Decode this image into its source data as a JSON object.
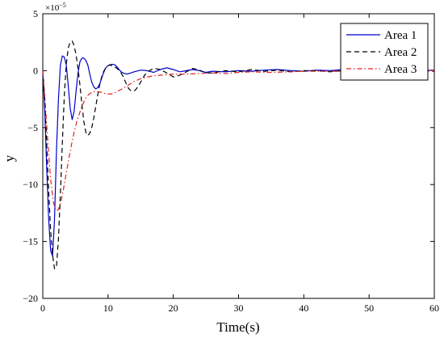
{
  "chart_data": {
    "type": "line",
    "xlabel": "Time(s)",
    "ylabel": "y",
    "y_exponent_label": "×10",
    "y_exponent_power": "−5",
    "xlim": [
      0,
      60
    ],
    "ylim": [
      -20,
      5
    ],
    "y_scale_factor": "1e-5",
    "xticks": [
      "0",
      "10",
      "20",
      "30",
      "40",
      "50",
      "60"
    ],
    "yticks": [
      "5",
      "0",
      "-5",
      "-10",
      "-15",
      "-20"
    ],
    "grid": false,
    "legend_position": "top-right",
    "series": [
      {
        "name": "Area 1",
        "color": "#0000cc",
        "dash": "solid",
        "x": [
          0,
          0.3,
          0.6,
          0.9,
          1.2,
          1.5,
          1.8,
          2.1,
          2.4,
          2.7,
          3.0,
          3.3,
          3.6,
          3.9,
          4.2,
          4.5,
          4.8,
          5.1,
          5.4,
          5.7,
          6.0,
          6.3,
          6.6,
          6.9,
          7.2,
          7.5,
          7.8,
          8.1,
          8.4,
          8.7,
          9.0,
          9.3,
          9.6,
          9.9,
          10.2,
          10.5,
          10.8,
          11.1,
          11.4,
          11.7,
          12.0,
          12.3,
          12.6,
          12.9,
          13.2,
          13.5,
          14,
          15,
          16,
          17,
          18,
          19,
          20,
          21,
          22,
          23,
          24,
          25,
          26,
          28,
          30,
          32,
          34,
          36,
          38,
          40,
          42,
          44,
          46,
          48,
          50,
          52,
          54,
          56,
          58,
          60
        ],
        "values": [
          0,
          -3.5,
          -8.5,
          -13,
          -15.8,
          -16.3,
          -13,
          -7,
          -2.5,
          0.5,
          1.3,
          1.2,
          0.5,
          -1.3,
          -3.3,
          -4.3,
          -3.6,
          -1.8,
          -0.2,
          0.8,
          1.1,
          1.1,
          0.9,
          0.5,
          -0.3,
          -1.0,
          -1.4,
          -1.6,
          -1.5,
          -1.2,
          -0.7,
          -0.2,
          0.2,
          0.4,
          0.5,
          0.55,
          0.55,
          0.5,
          0.3,
          0.1,
          -0.1,
          -0.2,
          -0.25,
          -0.3,
          -0.25,
          -0.2,
          -0.1,
          0.05,
          0.0,
          -0.15,
          0.1,
          0.25,
          0.1,
          -0.1,
          0.0,
          0.1,
          0.0,
          -0.15,
          -0.05,
          -0.1,
          0.0,
          -0.05,
          0.05,
          0.1,
          0.0,
          -0.05,
          0.05,
          0.0,
          0.1,
          0.05,
          0.0,
          0.05,
          -0.05,
          0.05,
          0.0,
          0.05
        ]
      },
      {
        "name": "Area 2",
        "color": "#000000",
        "dash": "dashed",
        "x": [
          0,
          0.3,
          0.6,
          0.9,
          1.2,
          1.5,
          1.8,
          2.1,
          2.4,
          2.7,
          3.0,
          3.3,
          3.6,
          3.9,
          4.2,
          4.5,
          4.8,
          5.1,
          5.4,
          5.7,
          6.0,
          6.3,
          6.6,
          6.9,
          7.2,
          7.5,
          7.8,
          8.1,
          8.4,
          8.7,
          9.0,
          9.3,
          9.6,
          9.9,
          10.2,
          10.5,
          10.8,
          11.1,
          11.4,
          11.7,
          12.0,
          12.3,
          12.6,
          12.9,
          13.2,
          13.5,
          13.8,
          14.1,
          14.4,
          14.7,
          15.0,
          15.3,
          15.6,
          16,
          17,
          18,
          19,
          20,
          21,
          22,
          23,
          24,
          25,
          26,
          28,
          30,
          32,
          34,
          36,
          38,
          40,
          42,
          44,
          46,
          48,
          50,
          52,
          54,
          56,
          58,
          60
        ],
        "values": [
          0,
          -2.5,
          -6.5,
          -10.5,
          -14.0,
          -16.2,
          -17.4,
          -17.2,
          -14.8,
          -10.8,
          -6.3,
          -2.2,
          0.6,
          2.0,
          2.5,
          2.6,
          2.2,
          1.4,
          0.2,
          -1.3,
          -3.0,
          -4.5,
          -5.4,
          -5.7,
          -5.5,
          -5.0,
          -4.2,
          -3.2,
          -2.2,
          -1.3,
          -0.6,
          -0.1,
          0.2,
          0.4,
          0.5,
          0.45,
          0.4,
          0.3,
          0.2,
          0.0,
          -0.2,
          -0.5,
          -0.9,
          -1.3,
          -1.6,
          -1.75,
          -1.8,
          -1.75,
          -1.55,
          -1.3,
          -1.0,
          -0.7,
          -0.4,
          -0.1,
          0.2,
          0.1,
          -0.2,
          -0.55,
          -0.4,
          -0.1,
          0.2,
          0.05,
          -0.2,
          -0.2,
          0.0,
          -0.1,
          0.1,
          -0.05,
          0.05,
          -0.1,
          0.0,
          0.0,
          -0.1,
          0.0,
          -0.05,
          0.0,
          -0.1,
          0.0,
          -0.05,
          0.0,
          -0.05
        ]
      },
      {
        "name": "Area 3",
        "color": "#e02020",
        "dash": "dashdot",
        "x": [
          0,
          0.4,
          0.8,
          1.2,
          1.6,
          2.0,
          2.4,
          2.8,
          3.2,
          3.6,
          4.0,
          4.4,
          4.8,
          5.2,
          5.6,
          6.0,
          6.5,
          7.0,
          7.5,
          8.0,
          8.5,
          9.0,
          9.5,
          10,
          10.5,
          11,
          12,
          13,
          14,
          15,
          16,
          17,
          18,
          19,
          20,
          22,
          24,
          26,
          28,
          30,
          32,
          35,
          38,
          40,
          45,
          50,
          55,
          60
        ],
        "values": [
          0,
          -3.0,
          -6.5,
          -9.5,
          -11.5,
          -12.3,
          -12.2,
          -11.5,
          -10.3,
          -9.0,
          -7.7,
          -6.5,
          -5.4,
          -4.5,
          -3.8,
          -3.1,
          -2.5,
          -2.1,
          -1.9,
          -1.8,
          -1.85,
          -1.9,
          -2.0,
          -2.05,
          -2.05,
          -1.95,
          -1.65,
          -1.3,
          -0.95,
          -0.7,
          -0.55,
          -0.45,
          -0.4,
          -0.35,
          -0.3,
          -0.3,
          -0.25,
          -0.2,
          -0.25,
          -0.15,
          -0.1,
          -0.15,
          -0.1,
          -0.05,
          -0.05,
          -0.05,
          0.0,
          0.0
        ]
      }
    ]
  }
}
